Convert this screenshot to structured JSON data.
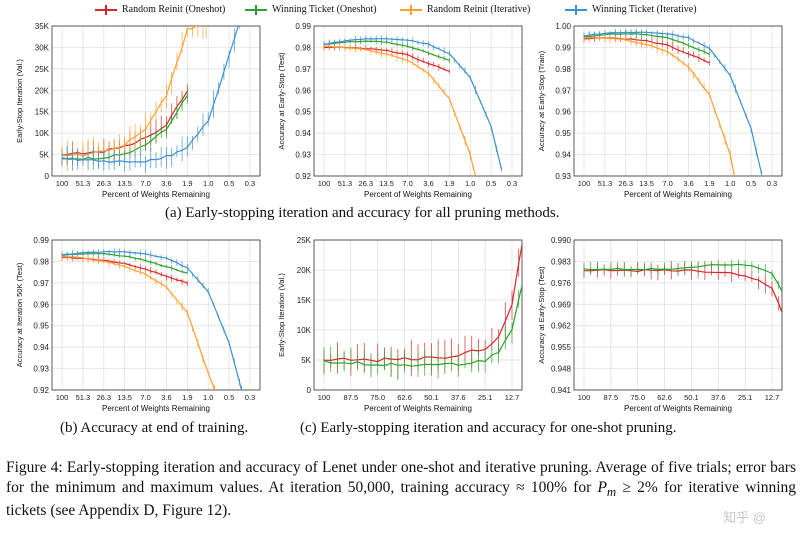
{
  "colors": {
    "rr_oneshot": "#d62728",
    "wt_oneshot": "#2ca02c",
    "rr_iter": "#ff9f33",
    "wt_iter": "#3d8fd1"
  },
  "legend": [
    {
      "label": "Random Reinit (Oneshot)",
      "color": "#d62728"
    },
    {
      "label": "Winning Ticket (Oneshot)",
      "color": "#2ca02c"
    },
    {
      "label": "Random Reinit (Iterative)",
      "color": "#ff9f33"
    },
    {
      "label": "Winning Ticket (Iterative)",
      "color": "#3d8fd1"
    }
  ],
  "captions": {
    "a": "(a) Early-stopping iteration and accuracy for all pruning methods.",
    "b": "(b) Accuracy at end of training.",
    "c": "(c) Early-stopping iteration and accuracy for one-shot pruning."
  },
  "figure_caption": {
    "prefix": "Figure 4:  Early-stopping iteration and accuracy of Lenet under one-shot and iterative pruning. Average of five trials; error bars for the minimum and maximum values. At iteration 50,000, training accuracy ≈ 100% for ",
    "math": "P",
    "math_sub": "m",
    "suffix": " ≥ 2% for iterative winning tickets (see Appendix D, Figure 12)."
  },
  "watermark": "知乎 @",
  "chart_data": [
    {
      "type": "line",
      "id": "a1",
      "xlabel": "Percent of Weights Remaining",
      "ylabel": "Early-Stop Iteration (Val.)",
      "xticks": [
        "100",
        "51.3",
        "26.3",
        "13.5",
        "7.0",
        "3.6",
        "1.9",
        "1.0",
        "0.5",
        "0.3"
      ],
      "yticks": [
        "0",
        "5K",
        "10K",
        "15K",
        "20K",
        "25K",
        "30K",
        "35K"
      ],
      "ylim": [
        0,
        35000
      ],
      "series": [
        {
          "name": "Random Reinit (Oneshot)",
          "color": "#d62728",
          "err": 2500,
          "points": [
            [
              0,
              5000
            ],
            [
              1,
              5200
            ],
            [
              2,
              5800
            ],
            [
              3,
              6800
            ],
            [
              4,
              8800
            ],
            [
              5,
              12000
            ],
            [
              6,
              20000
            ]
          ]
        },
        {
          "name": "Winning Ticket (Oneshot)",
          "color": "#2ca02c",
          "err": 2000,
          "points": [
            [
              0,
              4200
            ],
            [
              1,
              4000
            ],
            [
              2,
              4300
            ],
            [
              3,
              5200
            ],
            [
              4,
              7200
            ],
            [
              5,
              11000
            ],
            [
              6,
              19000
            ]
          ]
        },
        {
          "name": "Random Reinit (Iterative)",
          "color": "#ff9f33",
          "err": 3000,
          "points": [
            [
              0,
              4500
            ],
            [
              1,
              5000
            ],
            [
              2,
              5800
            ],
            [
              3,
              7500
            ],
            [
              4,
              11000
            ],
            [
              5,
              19000
            ],
            [
              6,
              34000
            ],
            [
              6.9,
              36000
            ]
          ]
        },
        {
          "name": "Winning Ticket (Iterative)",
          "color": "#3d8fd1",
          "err": 2500,
          "points": [
            [
              0,
              4200
            ],
            [
              1,
              3600
            ],
            [
              2,
              3400
            ],
            [
              3,
              3300
            ],
            [
              4,
              3500
            ],
            [
              5,
              4500
            ],
            [
              6,
              6500
            ],
            [
              7,
              13000
            ],
            [
              8,
              28000
            ],
            [
              8.5,
              36000
            ]
          ]
        }
      ]
    },
    {
      "type": "line",
      "id": "a2",
      "xlabel": "Percent of Weights Remaining",
      "ylabel": "Accuracy at Early-Stop (Test)",
      "xticks": [
        "100",
        "51.3",
        "26.3",
        "13.5",
        "7.0",
        "3.6",
        "1.9",
        "1.0",
        "0.5",
        "0.3"
      ],
      "yticks": [
        "0.92",
        "0.93",
        "0.94",
        "0.95",
        "0.96",
        "0.97",
        "0.98",
        "0.99"
      ],
      "ylim": [
        0.92,
        0.99
      ],
      "series": [
        {
          "name": "Random Reinit (Oneshot)",
          "color": "#d62728",
          "err": 0.0015,
          "points": [
            [
              0,
              0.98
            ],
            [
              1,
              0.98
            ],
            [
              2,
              0.9795
            ],
            [
              3,
              0.9785
            ],
            [
              4,
              0.9765
            ],
            [
              5,
              0.9725
            ],
            [
              6,
              0.969
            ]
          ]
        },
        {
          "name": "Winning Ticket (Oneshot)",
          "color": "#2ca02c",
          "err": 0.0012,
          "points": [
            [
              0,
              0.9815
            ],
            [
              1,
              0.9825
            ],
            [
              2,
              0.983
            ],
            [
              3,
              0.9825
            ],
            [
              4,
              0.9805
            ],
            [
              5,
              0.9775
            ],
            [
              6,
              0.974
            ]
          ]
        },
        {
          "name": "Random Reinit (Iterative)",
          "color": "#ff9f33",
          "err": 0.0018,
          "points": [
            [
              0,
              0.9805
            ],
            [
              1,
              0.98
            ],
            [
              2,
              0.979
            ],
            [
              3,
              0.977
            ],
            [
              4,
              0.974
            ],
            [
              5,
              0.968
            ],
            [
              6,
              0.956
            ],
            [
              7,
              0.93
            ],
            [
              7.25,
              0.92
            ]
          ]
        },
        {
          "name": "Winning Ticket (Iterative)",
          "color": "#3d8fd1",
          "err": 0.0015,
          "points": [
            [
              0,
              0.9815
            ],
            [
              1,
              0.983
            ],
            [
              2,
              0.984
            ],
            [
              3,
              0.984
            ],
            [
              4,
              0.9835
            ],
            [
              5,
              0.9815
            ],
            [
              6,
              0.977
            ],
            [
              7,
              0.966
            ],
            [
              8,
              0.943
            ],
            [
              8.5,
              0.923
            ]
          ]
        }
      ]
    },
    {
      "type": "line",
      "id": "a3",
      "xlabel": "Percent of Weights Remaining",
      "ylabel": "Accuracy at Early-Stop (Train)",
      "xticks": [
        "100",
        "51.3",
        "26.3",
        "13.5",
        "7.0",
        "3.6",
        "1.9",
        "1.0",
        "0.5",
        "0.3"
      ],
      "yticks": [
        "0.93",
        "0.94",
        "0.95",
        "0.96",
        "0.97",
        "0.98",
        "0.99",
        "1.00"
      ],
      "ylim": [
        0.93,
        1.0
      ],
      "series": [
        {
          "name": "Random Reinit (Oneshot)",
          "color": "#d62728",
          "err": 0.0018,
          "points": [
            [
              0,
              0.994
            ],
            [
              1,
              0.9945
            ],
            [
              2,
              0.994
            ],
            [
              3,
              0.993
            ],
            [
              4,
              0.991
            ],
            [
              5,
              0.987
            ],
            [
              6,
              0.983
            ]
          ]
        },
        {
          "name": "Winning Ticket (Oneshot)",
          "color": "#2ca02c",
          "err": 0.0015,
          "points": [
            [
              0,
              0.995
            ],
            [
              1,
              0.996
            ],
            [
              2,
              0.9965
            ],
            [
              3,
              0.996
            ],
            [
              4,
              0.9945
            ],
            [
              5,
              0.991
            ],
            [
              6,
              0.987
            ]
          ]
        },
        {
          "name": "Random Reinit (Iterative)",
          "color": "#ff9f33",
          "err": 0.002,
          "points": [
            [
              0,
              0.9945
            ],
            [
              1,
              0.9945
            ],
            [
              2,
              0.9935
            ],
            [
              3,
              0.9915
            ],
            [
              4,
              0.988
            ],
            [
              5,
              0.981
            ],
            [
              6,
              0.968
            ],
            [
              7,
              0.94
            ],
            [
              7.2,
              0.93
            ]
          ]
        },
        {
          "name": "Winning Ticket (Iterative)",
          "color": "#3d8fd1",
          "err": 0.0015,
          "points": [
            [
              0,
              0.9955
            ],
            [
              1,
              0.9965
            ],
            [
              2,
              0.997
            ],
            [
              3,
              0.997
            ],
            [
              4,
              0.9965
            ],
            [
              5,
              0.9945
            ],
            [
              6,
              0.9895
            ],
            [
              7,
              0.977
            ],
            [
              8,
              0.952
            ],
            [
              8.5,
              0.931
            ]
          ]
        }
      ]
    },
    {
      "type": "line",
      "id": "b",
      "xlabel": "Percent of Weights Remaining",
      "ylabel": "Accuracy at Iteration 50K (Test)",
      "xticks": [
        "100",
        "51.3",
        "26.3",
        "13.5",
        "7.0",
        "3.6",
        "1.9",
        "1.0",
        "0.5",
        "0.3"
      ],
      "yticks": [
        "0.92",
        "0.93",
        "0.94",
        "0.95",
        "0.96",
        "0.97",
        "0.98",
        "0.99"
      ],
      "ylim": [
        0.92,
        0.99
      ],
      "series": [
        {
          "name": "Random Reinit (Oneshot)",
          "color": "#d62728",
          "err": 0.0015,
          "points": [
            [
              0,
              0.982
            ],
            [
              1,
              0.9815
            ],
            [
              2,
              0.9805
            ],
            [
              3,
              0.979
            ],
            [
              4,
              0.9765
            ],
            [
              5,
              0.973
            ],
            [
              6,
              0.97
            ]
          ]
        },
        {
          "name": "Winning Ticket (Oneshot)",
          "color": "#2ca02c",
          "err": 0.0012,
          "points": [
            [
              0,
              0.983
            ],
            [
              1,
              0.9835
            ],
            [
              2,
              0.9835
            ],
            [
              3,
              0.9825
            ],
            [
              4,
              0.9805
            ],
            [
              5,
              0.9775
            ],
            [
              6,
              0.9745
            ]
          ]
        },
        {
          "name": "Random Reinit (Iterative)",
          "color": "#ff9f33",
          "err": 0.0018,
          "points": [
            [
              0,
              0.9825
            ],
            [
              1,
              0.9815
            ],
            [
              2,
              0.98
            ],
            [
              3,
              0.9775
            ],
            [
              4,
              0.974
            ],
            [
              5,
              0.968
            ],
            [
              6,
              0.956
            ],
            [
              7,
              0.928
            ],
            [
              7.3,
              0.92
            ]
          ]
        },
        {
          "name": "Winning Ticket (Iterative)",
          "color": "#3d8fd1",
          "err": 0.0015,
          "points": [
            [
              0,
              0.983
            ],
            [
              1,
              0.984
            ],
            [
              2,
              0.9845
            ],
            [
              3,
              0.9845
            ],
            [
              4,
              0.9835
            ],
            [
              5,
              0.9815
            ],
            [
              6,
              0.977
            ],
            [
              7,
              0.966
            ],
            [
              8,
              0.942
            ],
            [
              8.6,
              0.92
            ]
          ]
        }
      ]
    },
    {
      "type": "line",
      "id": "c1",
      "xlabel": "Percent of Weights Remaining",
      "ylabel": "Early-Stop Iteration (Val.)",
      "xticks": [
        "100",
        "87.5",
        "75.0",
        "62.6",
        "50.1",
        "37.6",
        "25.1",
        "12.7"
      ],
      "yticks": [
        "0",
        "5K",
        "10K",
        "15K",
        "20K",
        "25K"
      ],
      "ylim": [
        0,
        25000
      ],
      "series": [
        {
          "name": "Random Reinit (Oneshot)",
          "color": "#d62728",
          "err": 2500,
          "points": [
            [
              0,
              5000
            ],
            [
              1,
              5000
            ],
            [
              2,
              5000
            ],
            [
              3,
              5100
            ],
            [
              4,
              5300
            ],
            [
              5,
              5800
            ],
            [
              6,
              7000
            ],
            [
              6.5,
              9000
            ],
            [
              7,
              14000
            ],
            [
              7.4,
              25000
            ]
          ]
        },
        {
          "name": "Winning Ticket (Oneshot)",
          "color": "#2ca02c",
          "err": 2000,
          "points": [
            [
              0,
              4800
            ],
            [
              1,
              4500
            ],
            [
              2,
              4300
            ],
            [
              3,
              4200
            ],
            [
              4,
              4200
            ],
            [
              5,
              4300
            ],
            [
              6,
              5000
            ],
            [
              6.5,
              6500
            ],
            [
              7,
              10000
            ],
            [
              7.4,
              18000
            ]
          ]
        }
      ]
    },
    {
      "type": "line",
      "id": "c2",
      "xlabel": "Percent of Weights Remaining",
      "ylabel": "Accuracy at Early-Stop (Test)",
      "xticks": [
        "100",
        "87.5",
        "75.0",
        "62.6",
        "50.1",
        "37.6",
        "25.1",
        "12.7"
      ],
      "yticks": [
        "0.941",
        "0.948",
        "0.955",
        "0.962",
        "0.969",
        "0.976",
        "0.983",
        "0.990"
      ],
      "ylim": [
        0.941,
        0.99
      ],
      "series": [
        {
          "name": "Random Reinit (Oneshot)",
          "color": "#d62728",
          "err": 0.0025,
          "points": [
            [
              0,
              0.98
            ],
            [
              1,
              0.98
            ],
            [
              2,
              0.98
            ],
            [
              3,
              0.98
            ],
            [
              4,
              0.98
            ],
            [
              5,
              0.9795
            ],
            [
              6,
              0.9785
            ],
            [
              6.5,
              0.977
            ],
            [
              7,
              0.974
            ],
            [
              7.4,
              0.966
            ]
          ]
        },
        {
          "name": "Winning Ticket (Oneshot)",
          "color": "#2ca02c",
          "err": 0.0018,
          "points": [
            [
              0,
              0.9805
            ],
            [
              1,
              0.9805
            ],
            [
              2,
              0.9805
            ],
            [
              3,
              0.9805
            ],
            [
              4,
              0.981
            ],
            [
              5,
              0.982
            ],
            [
              6,
              0.982
            ],
            [
              6.5,
              0.981
            ],
            [
              7,
              0.979
            ],
            [
              7.4,
              0.973
            ]
          ]
        }
      ]
    }
  ]
}
